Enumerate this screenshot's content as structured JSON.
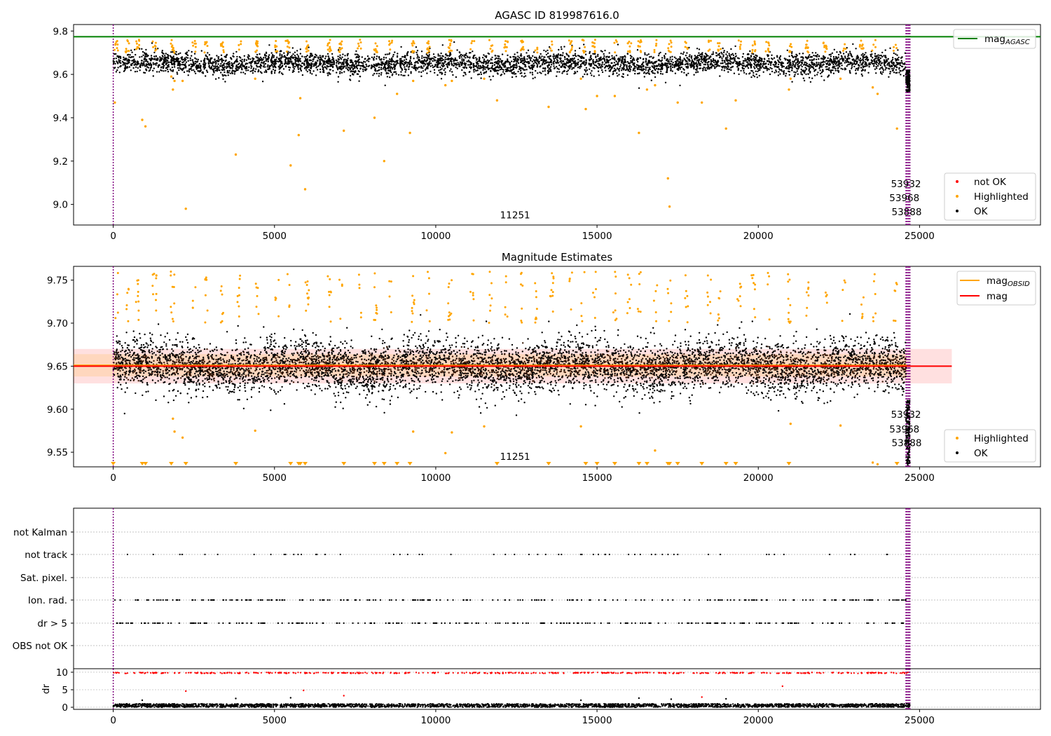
{
  "chart_data": [
    {
      "type": "scatter",
      "title": "AGASC ID 819987616.0",
      "xlim": [
        -1230,
        28750
      ],
      "ylim": [
        8.905,
        9.83
      ],
      "xticks": [
        0,
        5000,
        10000,
        15000,
        20000,
        25000
      ],
      "xtick_labels": [
        "0",
        "5000",
        "10000",
        "15000",
        "20000",
        "25000"
      ],
      "yticks": [
        9.0,
        9.2,
        9.4,
        9.6,
        9.8
      ],
      "ytick_labels": [
        "9.0",
        "9.2",
        "9.4",
        "9.6",
        "9.8"
      ],
      "reference_lines": [
        {
          "name": "mag_AGASC",
          "y": 9.774,
          "color": "#008000"
        }
      ],
      "obsid_lines_x": [
        0,
        24580,
        24620,
        24660,
        24700
      ],
      "obsid_labels": [
        {
          "text": "11251",
          "x": 12460,
          "y": 8.935
        },
        {
          "text": "53932",
          "x": 24580,
          "y": 9.08
        },
        {
          "text": "53968",
          "x": 24530,
          "y": 9.015
        },
        {
          "text": "53888",
          "x": 24600,
          "y": 8.95
        }
      ],
      "bands": [
        {
          "name": "OK",
          "x": [
            0,
            24580
          ],
          "y_center": 9.65,
          "y_spread": 0.025
        },
        {
          "name": "OK tail",
          "x": [
            24580,
            24700
          ],
          "y_range": [
            9.52,
            9.62
          ]
        }
      ],
      "highlighted_upper": {
        "x_range": [
          0,
          24600
        ],
        "y_range": [
          9.7,
          9.76
        ]
      },
      "highlighted_points": [
        [
          50,
          9.47
        ],
        [
          900,
          9.39
        ],
        [
          1000,
          9.36
        ],
        [
          1800,
          9.59
        ],
        [
          1850,
          9.53
        ],
        [
          1900,
          9.57
        ],
        [
          2150,
          9.57
        ],
        [
          2250,
          8.98
        ],
        [
          3800,
          9.23
        ],
        [
          4400,
          9.58
        ],
        [
          5500,
          9.18
        ],
        [
          5750,
          9.32
        ],
        [
          5800,
          9.49
        ],
        [
          5950,
          9.07
        ],
        [
          7150,
          9.34
        ],
        [
          8100,
          9.4
        ],
        [
          8400,
          9.2
        ],
        [
          8800,
          9.51
        ],
        [
          9200,
          9.33
        ],
        [
          9300,
          9.57
        ],
        [
          10300,
          9.55
        ],
        [
          10500,
          9.57
        ],
        [
          11500,
          9.58
        ],
        [
          11900,
          9.48
        ],
        [
          13500,
          9.45
        ],
        [
          14500,
          9.58
        ],
        [
          14650,
          9.44
        ],
        [
          15000,
          9.5
        ],
        [
          15550,
          9.5
        ],
        [
          16300,
          9.33
        ],
        [
          16550,
          9.53
        ],
        [
          16800,
          9.55
        ],
        [
          17200,
          9.12
        ],
        [
          17250,
          8.99
        ],
        [
          17500,
          9.47
        ],
        [
          18250,
          9.47
        ],
        [
          19000,
          9.35
        ],
        [
          19300,
          9.48
        ],
        [
          20950,
          9.53
        ],
        [
          21000,
          9.58
        ],
        [
          22550,
          9.58
        ],
        [
          23550,
          9.54
        ],
        [
          23700,
          9.51
        ],
        [
          24300,
          9.35
        ]
      ],
      "legend_top": [
        {
          "label": "mag",
          "label_sub": "AGASC",
          "color": "#008000",
          "marker": "line"
        }
      ],
      "legend_bottom": [
        {
          "label": "not OK",
          "color": "#ff0000",
          "marker": "dot"
        },
        {
          "label": "Highlighted",
          "color": "#ffa500",
          "marker": "dot"
        },
        {
          "label": "OK",
          "color": "#000000",
          "marker": "dot"
        }
      ]
    },
    {
      "type": "scatter",
      "title": "Magnitude Estimates",
      "xlim": [
        -1230,
        28750
      ],
      "ylim": [
        9.533,
        9.766
      ],
      "xticks": [
        0,
        5000,
        10000,
        15000,
        20000,
        25000
      ],
      "xtick_labels": [
        "0",
        "5000",
        "10000",
        "15000",
        "20000",
        "25000"
      ],
      "yticks": [
        9.55,
        9.6,
        9.65,
        9.7,
        9.75
      ],
      "ytick_labels": [
        "9.55",
        "9.60",
        "9.65",
        "9.70",
        "9.75"
      ],
      "reference_lines": [
        {
          "name": "mag_OBSID",
          "y": 9.651,
          "x": [
            -1230,
            24600
          ],
          "color": "#ffa500"
        },
        {
          "name": "mag",
          "y": 9.65,
          "x": [
            -1230,
            26000
          ],
          "color": "#ff0000"
        }
      ],
      "shaded_bands": [
        {
          "y": [
            9.63,
            9.67
          ],
          "x": [
            -1230,
            26000
          ],
          "color": "#ff0000",
          "opacity": 0.12
        },
        {
          "y": [
            9.638,
            9.664
          ],
          "x": [
            -1230,
            24600
          ],
          "color": "#ffa500",
          "opacity": 0.15
        }
      ],
      "obsid_lines_x": [
        0,
        24580,
        24620,
        24660,
        24700
      ],
      "obsid_labels": [
        {
          "text": "11251",
          "x": 12460,
          "y": 9.541
        },
        {
          "text": "53932",
          "x": 24580,
          "y": 9.59
        },
        {
          "text": "53968",
          "x": 24530,
          "y": 9.573
        },
        {
          "text": "53888",
          "x": 24600,
          "y": 9.557
        }
      ],
      "bands": [
        {
          "name": "OK",
          "x": [
            0,
            24580
          ],
          "y_center": 9.65,
          "y_spread": 0.016
        },
        {
          "name": "OK tail",
          "x": [
            24580,
            24700
          ],
          "y_range": [
            9.535,
            9.61
          ]
        }
      ],
      "highlighted_upper": {
        "x_range": [
          0,
          24600
        ],
        "y_range": [
          9.7,
          9.76
        ]
      },
      "highlighted_points": [
        [
          1850,
          9.589
        ],
        [
          1900,
          9.574
        ],
        [
          2150,
          9.567
        ],
        [
          4400,
          9.575
        ],
        [
          9300,
          9.574
        ],
        [
          10300,
          9.549
        ],
        [
          10500,
          9.573
        ],
        [
          11500,
          9.58
        ],
        [
          14500,
          9.58
        ],
        [
          16800,
          9.552
        ],
        [
          21000,
          9.583
        ],
        [
          22550,
          9.581
        ],
        [
          23550,
          9.538
        ],
        [
          23700,
          9.536
        ]
      ],
      "clipped_below_x": [
        0,
        900,
        1000,
        1800,
        2250,
        3800,
        5500,
        5750,
        5800,
        5950,
        7150,
        8100,
        8400,
        8800,
        9200,
        11900,
        13500,
        14650,
        15000,
        15550,
        16300,
        16550,
        17200,
        17250,
        17500,
        18250,
        19000,
        19300,
        20950,
        24300
      ],
      "legend_top": [
        {
          "label": "mag",
          "label_sub": "OBSID",
          "color": "#ffa500",
          "marker": "line"
        },
        {
          "label": "mag",
          "label_sub": "",
          "color": "#ff0000",
          "marker": "line"
        }
      ],
      "legend_bottom": [
        {
          "label": "Highlighted",
          "color": "#ffa500",
          "marker": "dot"
        },
        {
          "label": "OK",
          "color": "#000000",
          "marker": "dot"
        }
      ]
    },
    {
      "type": "scatter",
      "title": "",
      "xlim": [
        -1230,
        28750
      ],
      "categories": [
        "OBS not OK",
        "dr > 5",
        "Ion. rad.",
        "Sat. pixel.",
        "not track",
        "not Kalman"
      ],
      "category_points": {
        "not Kalman": [],
        "not track": {
          "count": 60
        },
        "Sat. pixel.": [],
        "Ion. rad.": {
          "count": 230
        },
        "dr > 5": {
          "count": 250
        },
        "OBS not OK": []
      },
      "obsid_lines_x": [
        0,
        24580,
        24620,
        24660,
        24700
      ]
    },
    {
      "type": "scatter",
      "title": "",
      "xlim": [
        -1230,
        28750
      ],
      "ylim": [
        -0.6,
        11.0
      ],
      "ylabel": "dr",
      "xticks": [
        0,
        5000,
        10000,
        15000,
        20000,
        25000
      ],
      "xtick_labels": [
        "0",
        "5000",
        "10000",
        "15000",
        "20000",
        "25000"
      ],
      "yticks": [
        0,
        5,
        10
      ],
      "ytick_labels": [
        "0",
        "5",
        "10"
      ],
      "series": [
        {
          "name": "OK",
          "color": "#000000",
          "x_range": [
            0,
            24700
          ],
          "y_range": [
            0.0,
            1.0
          ]
        },
        {
          "name": "not OK",
          "color": "#ff0000",
          "x_range": [
            0,
            24700
          ],
          "y": 9.8
        }
      ],
      "outlier_points": [
        [
          2250,
          4.6
        ],
        [
          5900,
          4.8
        ],
        [
          7150,
          3.3
        ],
        [
          18250,
          2.9
        ],
        [
          20750,
          6.0
        ],
        [
          900,
          2.0
        ],
        [
          3800,
          2.5
        ],
        [
          5500,
          2.7
        ],
        [
          14500,
          2.0
        ],
        [
          16300,
          2.6
        ],
        [
          17300,
          2.3
        ],
        [
          19000,
          2.4
        ]
      ],
      "obsid_lines_x": [
        0,
        24580,
        24620,
        24660,
        24700
      ]
    }
  ]
}
